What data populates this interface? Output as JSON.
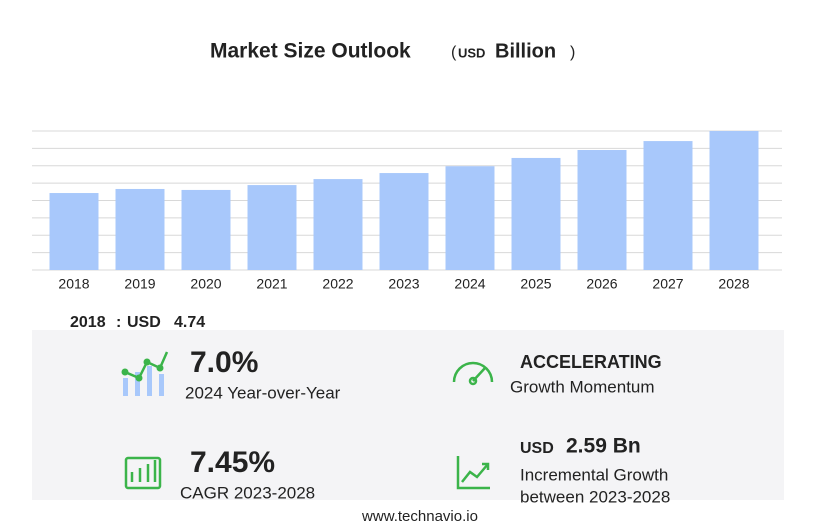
{
  "chart_data": {
    "type": "bar",
    "title": "Market Size Outlook",
    "unit_currency": "USD",
    "unit_scale": "Billion",
    "categories": [
      "2018",
      "2019",
      "2020",
      "2021",
      "2022",
      "2023",
      "2024",
      "2025",
      "2026",
      "2027",
      "2028"
    ],
    "values": [
      4.74,
      4.99,
      4.93,
      5.23,
      5.6,
      5.97,
      6.39,
      6.9,
      7.39,
      7.94,
      8.56
    ],
    "color": "#a8c8fb",
    "ylim": [
      0,
      8.56
    ]
  },
  "base": {
    "year": "2018",
    "currency": "USD",
    "value": 4.74
  },
  "stats": {
    "yoy": {
      "value": "7.0%",
      "label": "2024 Year-over-Year"
    },
    "momentum": {
      "value": "ACCELERATING",
      "label": "Growth Momentum"
    },
    "cagr": {
      "value": "7.45%",
      "label": "CAGR 2023-2028"
    },
    "incremental": {
      "currency": "USD",
      "value": "2.59 Bn",
      "label": "Incremental Growth",
      "label2": "between 2023-2028"
    }
  },
  "footer": "www.technavio.io"
}
